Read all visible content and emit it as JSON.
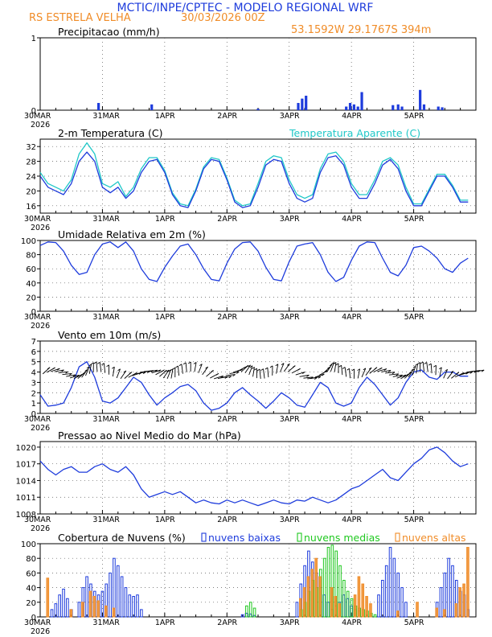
{
  "header": {
    "title": "MCTIC/INPE/CPTEC - MODELO REGIONAL WRF",
    "location": "RS ESTRELA VELHA",
    "run": "30/03/2026 00Z",
    "coords": "53.1592W 29.1767S 394m"
  },
  "colors": {
    "blue": "#1e3cdc",
    "cyan": "#20c8c8",
    "green": "#20c820",
    "orange": "#f08c28",
    "axis": "#000000",
    "grid": "#555555"
  },
  "x_axis": {
    "ticks": [
      "30MAR",
      "31MAR",
      "1APR",
      "2APR",
      "3APR",
      "4APR",
      "5APR"
    ],
    "year": "2026"
  },
  "chart_data": [
    {
      "type": "bar",
      "title": "Precipitacao (mm/h)",
      "ylim": [
        0,
        1
      ],
      "yticks": [
        "0",
        "1"
      ],
      "x_units": "hours since 30MAR 00Z",
      "x": [
        22.5,
        43,
        84,
        99.5,
        101,
        102.5,
        118,
        119.5,
        121,
        122.5,
        124,
        136,
        138,
        139.5,
        146.5,
        148,
        153.5,
        155
      ],
      "values": [
        0.1,
        0.08,
        0.02,
        0.1,
        0.16,
        0.2,
        0.05,
        0.1,
        0.08,
        0.05,
        0.25,
        0.07,
        0.08,
        0.05,
        0.28,
        0.08,
        0.05,
        0.04
      ]
    },
    {
      "type": "line",
      "title": "2-m Temperatura (C)",
      "legend": "Temperatura Aparente (C)",
      "ylim": [
        14,
        34
      ],
      "yticks": [
        "16",
        "20",
        "24",
        "28",
        "32"
      ],
      "x_units": "hours since 30MAR 00Z",
      "series": [
        {
          "name": "2-m Temperatura (C)",
          "x": [
            0,
            3,
            6,
            9,
            12,
            15,
            18,
            21,
            24,
            27,
            30,
            33,
            36,
            39,
            42,
            45,
            48,
            51,
            54,
            57,
            60,
            63,
            66,
            69,
            72,
            75,
            78,
            81,
            84,
            87,
            90,
            93,
            96,
            99,
            102,
            105,
            108,
            111,
            114,
            117,
            120,
            123,
            126,
            129,
            132,
            135,
            138,
            141,
            144,
            147,
            150,
            153,
            156,
            159,
            162,
            165
          ],
          "values": [
            24,
            21,
            20,
            19,
            22,
            28,
            30.5,
            28,
            21,
            19.5,
            21,
            18,
            20,
            25,
            28,
            28.5,
            25,
            19,
            16,
            15.5,
            20,
            26,
            28.5,
            28,
            23,
            17,
            15.5,
            16,
            21,
            27,
            28.5,
            28,
            22,
            18,
            17,
            18,
            25,
            29,
            29.5,
            27,
            21,
            18,
            18,
            22,
            27,
            28.5,
            26,
            20,
            16,
            16,
            20,
            24,
            24,
            21,
            17,
            17
          ]
        },
        {
          "name": "Temperatura Aparente (C)",
          "x": [
            0,
            3,
            6,
            9,
            12,
            15,
            18,
            21,
            24,
            27,
            30,
            33,
            36,
            39,
            42,
            45,
            48,
            51,
            54,
            57,
            60,
            63,
            66,
            69,
            72,
            75,
            78,
            81,
            84,
            87,
            90,
            93,
            96,
            99,
            102,
            105,
            108,
            111,
            114,
            117,
            120,
            123,
            126,
            129,
            132,
            135,
            138,
            141,
            144,
            147,
            150,
            153,
            156,
            159,
            162,
            165
          ],
          "values": [
            25,
            22,
            21,
            20,
            23,
            30,
            33,
            30,
            22,
            21,
            22.5,
            18.5,
            21,
            26,
            29,
            29,
            25.5,
            19.5,
            16.5,
            16,
            20.5,
            26.5,
            29,
            28.5,
            23.5,
            17.5,
            16,
            16.5,
            22,
            28,
            29.5,
            29,
            23,
            19,
            18,
            19,
            26,
            30,
            30.5,
            28,
            22,
            19,
            19,
            23,
            28,
            29,
            27,
            21,
            16.5,
            16.5,
            20.5,
            24.5,
            24.5,
            21.5,
            17.5,
            17.5
          ]
        }
      ]
    },
    {
      "type": "line",
      "title": "Umidade Relativa em 2m (%)",
      "ylim": [
        0,
        100
      ],
      "yticks": [
        "0",
        "20",
        "40",
        "60",
        "80",
        "100"
      ],
      "x_units": "hours since 30MAR 00Z",
      "series": [
        {
          "name": "Umidade Relativa em 2m (%)",
          "x": [
            0,
            3,
            6,
            9,
            12,
            15,
            18,
            21,
            24,
            27,
            30,
            33,
            36,
            39,
            42,
            45,
            48,
            51,
            54,
            57,
            60,
            63,
            66,
            69,
            72,
            75,
            78,
            81,
            84,
            87,
            90,
            93,
            96,
            99,
            102,
            105,
            108,
            111,
            114,
            117,
            120,
            123,
            126,
            129,
            132,
            135,
            138,
            141,
            144,
            147,
            150,
            153,
            156,
            159,
            162,
            165
          ],
          "values": [
            93,
            98,
            97,
            85,
            65,
            52,
            55,
            80,
            95,
            98,
            90,
            98,
            85,
            60,
            45,
            42,
            62,
            78,
            92,
            95,
            80,
            60,
            45,
            43,
            68,
            88,
            97,
            98,
            85,
            62,
            45,
            43,
            70,
            92,
            95,
            97,
            80,
            55,
            42,
            48,
            72,
            92,
            98,
            97,
            75,
            55,
            50,
            65,
            90,
            92,
            85,
            75,
            60,
            55,
            68,
            75
          ]
        }
      ]
    },
    {
      "type": "line",
      "title": "Vento em 10m (m/s)",
      "ylim": [
        0,
        7
      ],
      "yticks": [
        "0",
        "1",
        "2",
        "3",
        "4",
        "5",
        "6",
        "7"
      ],
      "x_units": "hours since 30MAR 00Z",
      "series": [
        {
          "name": "Vento em 10m (m/s)",
          "x": [
            0,
            3,
            6,
            9,
            12,
            15,
            18,
            21,
            24,
            27,
            30,
            33,
            36,
            39,
            42,
            45,
            48,
            51,
            54,
            57,
            60,
            63,
            66,
            69,
            72,
            75,
            78,
            81,
            84,
            87,
            90,
            93,
            96,
            99,
            102,
            105,
            108,
            111,
            114,
            117,
            120,
            123,
            126,
            129,
            132,
            135,
            138,
            141,
            144,
            147,
            150,
            153,
            156,
            159,
            162,
            165
          ],
          "values": [
            1.8,
            0.7,
            0.8,
            1,
            2.5,
            4.5,
            5,
            3.5,
            1.2,
            1,
            1.5,
            2.5,
            3.5,
            3,
            1.8,
            0.8,
            1.5,
            2,
            2.6,
            2.8,
            2.2,
            1,
            0.3,
            0.5,
            1,
            2,
            2.5,
            1.8,
            1.2,
            0.5,
            1.2,
            2,
            1.5,
            0.8,
            0.6,
            1.8,
            3,
            2.5,
            1,
            0.7,
            1,
            2.5,
            3.5,
            2.8,
            1.8,
            0.8,
            1.5,
            3,
            4,
            4.2,
            3.5,
            3.3,
            4,
            4,
            3.6,
            3.6
          ]
        }
      ]
    },
    {
      "type": "line",
      "title": "Pressao ao Nivel Medio do Mar (hPa)",
      "ylim": [
        1008,
        1021
      ],
      "yticks": [
        "1008",
        "1011",
        "1014",
        "1017",
        "1020"
      ],
      "x_units": "hours since 30MAR 00Z",
      "series": [
        {
          "name": "Pressao ao Nivel Medio do Mar (hPa)",
          "x": [
            0,
            3,
            6,
            9,
            12,
            15,
            18,
            21,
            24,
            27,
            30,
            33,
            36,
            39,
            42,
            45,
            48,
            51,
            54,
            57,
            60,
            63,
            66,
            69,
            72,
            75,
            78,
            81,
            84,
            87,
            90,
            93,
            96,
            99,
            102,
            105,
            108,
            111,
            114,
            117,
            120,
            123,
            126,
            129,
            132,
            135,
            138,
            141,
            144,
            147,
            150,
            153,
            156,
            159,
            162,
            165
          ],
          "values": [
            1017.5,
            1016,
            1015,
            1016,
            1016.5,
            1015.5,
            1015.5,
            1016.5,
            1017,
            1016,
            1015.5,
            1016.5,
            1015,
            1012.5,
            1011,
            1011.5,
            1012,
            1011.5,
            1012,
            1011,
            1010,
            1010.5,
            1010,
            1009.8,
            1010.5,
            1010,
            1010.5,
            1010,
            1009.5,
            1010,
            1010.5,
            1010,
            1009.8,
            1010.5,
            1010.3,
            1011,
            1010.5,
            1010,
            1010.5,
            1011.5,
            1012.5,
            1013,
            1014,
            1015,
            1016,
            1014.5,
            1014,
            1015.5,
            1017,
            1018,
            1019.5,
            1020,
            1019,
            1017.5,
            1016.5,
            1017
          ]
        }
      ]
    },
    {
      "type": "bar",
      "title": "Cobertura de Nuvens (%)",
      "ylim": [
        0,
        100
      ],
      "yticks": [
        "0",
        "20",
        "40",
        "60",
        "80",
        "100"
      ],
      "legend": [
        "nuvens baixas",
        "nuvens medias",
        "nuvens altas"
      ],
      "x_units": "hours since 30MAR 00Z",
      "series": [
        {
          "name": "nuvens baixas",
          "x": [
            4.5,
            6,
            7.5,
            9,
            10.5,
            12,
            15,
            16.5,
            18,
            19.5,
            21,
            22.5,
            24,
            25.5,
            27,
            28.5,
            30,
            31.5,
            33,
            34.5,
            36,
            37.5,
            39,
            78,
            79.5,
            81,
            82.5,
            99,
            100.5,
            102,
            103.5,
            105,
            106.5,
            108,
            109.5,
            111,
            112.5,
            114,
            115.5,
            117,
            118.5,
            120,
            121.5,
            123,
            130.5,
            132,
            133.5,
            135,
            136.5,
            138,
            139.5,
            141,
            153,
            154.5,
            156,
            157.5,
            159,
            160.5,
            162,
            163.5,
            165
          ],
          "values": [
            10,
            18,
            30,
            38,
            25,
            10,
            20,
            40,
            55,
            45,
            35,
            30,
            35,
            45,
            60,
            80,
            70,
            55,
            40,
            30,
            28,
            30,
            10,
            3,
            5,
            4,
            2,
            20,
            45,
            70,
            90,
            75,
            60,
            40,
            30,
            20,
            10,
            15,
            20,
            30,
            25,
            15,
            10,
            8,
            30,
            50,
            70,
            95,
            80,
            60,
            40,
            20,
            20,
            40,
            60,
            80,
            70,
            50,
            35,
            30,
            10
          ]
        },
        {
          "name": "nuvens medias",
          "x": [
            79.5,
            81,
            82.5,
            100.5,
            102,
            103.5,
            105,
            106.5,
            108,
            109.5,
            111,
            112.5,
            114,
            115.5,
            117,
            118.5,
            120,
            121.5,
            123,
            124.5,
            126,
            127.5,
            129
          ],
          "values": [
            15,
            20,
            12,
            10,
            20,
            35,
            50,
            40,
            65,
            80,
            95,
            98,
            90,
            70,
            50,
            35,
            25,
            15,
            12,
            10,
            8,
            5,
            3
          ]
        },
        {
          "name": "nuvens altas",
          "x": [
            3,
            12,
            16.5,
            19.5,
            21,
            22.5,
            25.5,
            28.5,
            100.5,
            102,
            103.5,
            105,
            106.5,
            108,
            112.5,
            114,
            115.5,
            121.5,
            123,
            124.5,
            126,
            127.5,
            138,
            145.5,
            153,
            156,
            160.5,
            162,
            163.5,
            165
          ],
          "values": [
            53,
            10,
            20,
            35,
            28,
            22,
            15,
            12,
            25,
            40,
            55,
            65,
            80,
            55,
            40,
            28,
            18,
            30,
            55,
            45,
            28,
            18,
            8,
            20,
            12,
            10,
            18,
            40,
            45,
            95
          ]
        }
      ]
    }
  ]
}
